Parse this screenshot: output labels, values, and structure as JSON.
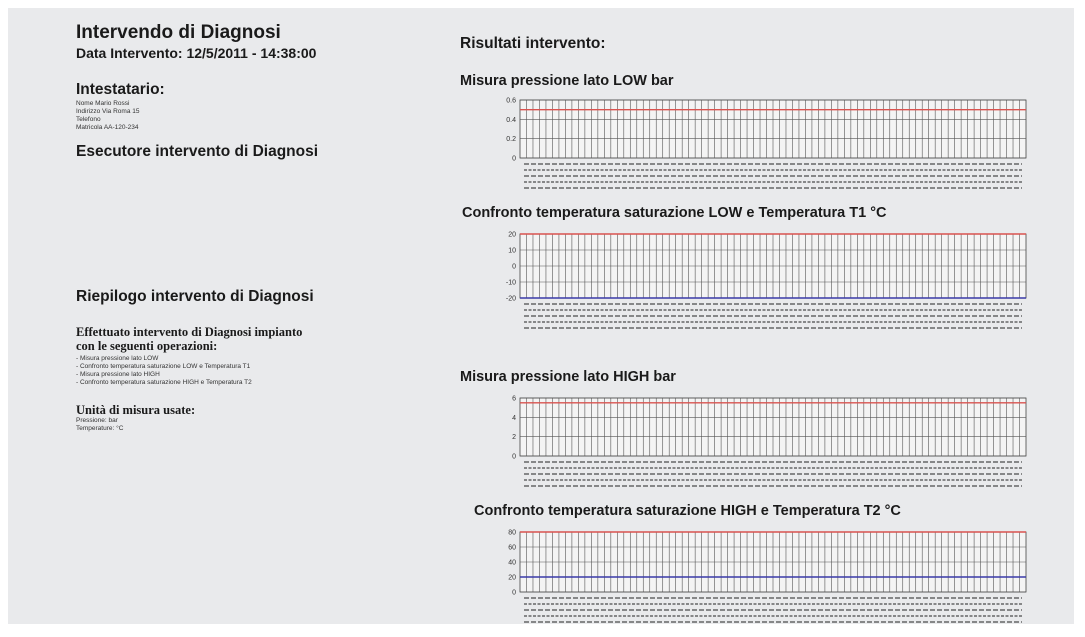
{
  "report": {
    "title": "Intervendo di Diagnosi",
    "date_line": "Data Intervento: 12/5/2011 - 14:38:00",
    "holder_heading": "Intestatario:",
    "holder_lines": [
      "Nome Mario Rossi",
      "Indirizzo Via Roma 15",
      "Telefono",
      "Matricola AA-120-234"
    ],
    "executor_heading": "Esecutore intervento di Diagnosi",
    "summary_heading": "Riepilogo intervento di Diagnosi",
    "summary_intro_1": "Effettuato intervento di Diagnosi impianto",
    "summary_intro_2": "con le seguenti operazioni:",
    "operations": [
      "- Misura pressione lato LOW",
      "- Confronto temperatura saturazione LOW e Temperatura T1",
      "- Misura pressione lato HIGH",
      "- Confronto temperatura saturazione HIGH e Temperatura T2"
    ],
    "units_heading": "Unità di misura usate:",
    "units_lines": [
      "Pressione: bar",
      "Temperature: °C"
    ]
  },
  "results": {
    "heading": "Risultati intervento:"
  },
  "colors": {
    "red_series": "#d9534f",
    "blue_series": "#3a3aa8",
    "grid": "#555555",
    "background": "#e9eaec"
  },
  "chart_data": [
    {
      "type": "line",
      "title": "Misura pressione lato LOW bar",
      "yticks": [
        "0.6",
        "0.4",
        "0.2",
        "0"
      ],
      "ylim": [
        0,
        0.6
      ],
      "series": [
        {
          "values": [
            0.5,
            0.5
          ]
        }
      ]
    },
    {
      "type": "line",
      "title": "Confronto temperatura saturazione LOW e Temperatura T1 °C",
      "yticks": [
        "20",
        "10",
        "0",
        "-10",
        "-20"
      ],
      "ylim": [
        -20,
        20
      ],
      "series": [
        {
          "values": [
            20,
            20
          ]
        },
        {
          "values": [
            -20,
            -20
          ]
        }
      ]
    },
    {
      "type": "line",
      "title": "Misura pressione lato HIGH bar",
      "yticks": [
        "6",
        "4",
        "2",
        "0"
      ],
      "ylim": [
        0,
        6
      ],
      "series": [
        {
          "values": [
            5.5,
            5.5
          ]
        }
      ]
    },
    {
      "type": "line",
      "title": "Confronto temperatura saturazione HIGH e Temperatura T2 °C",
      "yticks": [
        "80",
        "60",
        "40",
        "20",
        "0"
      ],
      "ylim": [
        0,
        80
      ],
      "series": [
        {
          "values": [
            80,
            80
          ]
        },
        {
          "values": [
            20,
            20
          ]
        }
      ]
    }
  ]
}
